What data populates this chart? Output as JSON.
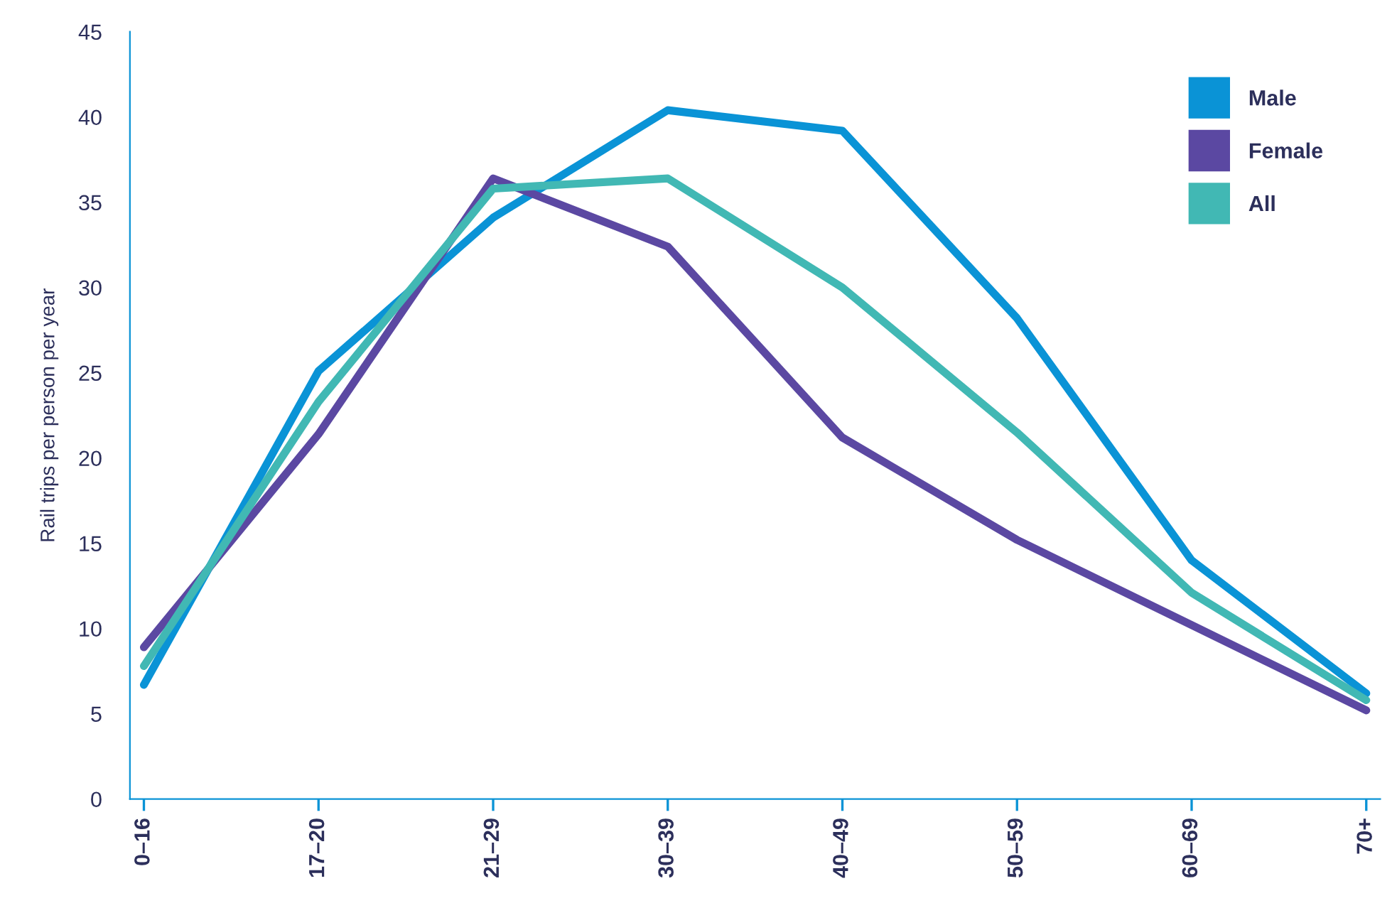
{
  "chart_data": {
    "type": "line",
    "ylabel": "Rail trips per person per year",
    "categories": [
      "0–16",
      "17–20",
      "21–29",
      "30–39",
      "40–49",
      "50–59",
      "60–69",
      "70+"
    ],
    "series": [
      {
        "name": "Male",
        "color": "#0a93d6",
        "values": [
          6.7,
          25.1,
          34.1,
          40.4,
          39.2,
          28.2,
          14,
          6.2
        ]
      },
      {
        "name": "Female",
        "color": "#5b48a2",
        "values": [
          8.9,
          21.4,
          36.4,
          32.4,
          21.2,
          15.2,
          10.2,
          5.2
        ]
      },
      {
        "name": "All",
        "color": "#41b8b4",
        "values": [
          7.8,
          23.3,
          35.8,
          36.4,
          30,
          21.5,
          12.1,
          5.8
        ]
      }
    ],
    "ylim": [
      0,
      45
    ],
    "yticks": [
      0,
      5,
      10,
      15,
      20,
      25,
      30,
      35,
      40,
      45
    ],
    "grid": false,
    "legend": "top right",
    "marker": "none",
    "line_style": "solid"
  }
}
